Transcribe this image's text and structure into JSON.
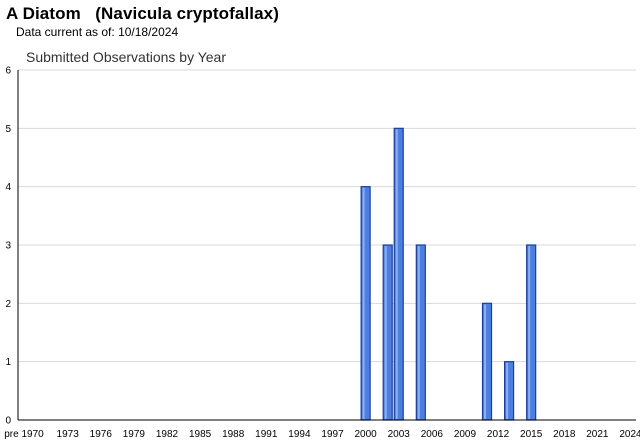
{
  "header": {
    "species": "A Diatom",
    "scientific_name": "(Navicula cryptofallax)",
    "data_current_label": "Data current as of:",
    "data_current_date": "10/18/2024"
  },
  "chart_data": {
    "type": "bar",
    "title": "Submitted Observations by Year",
    "xlabel": "",
    "ylabel": "",
    "ylim": [
      0,
      6
    ],
    "yticks": [
      0,
      1,
      2,
      3,
      4,
      5,
      6
    ],
    "grid": true,
    "legend": "none",
    "categories": [
      "pre 1970",
      "1970",
      "1971",
      "1972",
      "1973",
      "1974",
      "1975",
      "1976",
      "1977",
      "1978",
      "1979",
      "1980",
      "1981",
      "1982",
      "1983",
      "1984",
      "1985",
      "1986",
      "1987",
      "1988",
      "1989",
      "1990",
      "1991",
      "1992",
      "1993",
      "1994",
      "1995",
      "1996",
      "1997",
      "1998",
      "1999",
      "2000",
      "2001",
      "2002",
      "2003",
      "2004",
      "2005",
      "2006",
      "2007",
      "2008",
      "2009",
      "2010",
      "2011",
      "2012",
      "2013",
      "2014",
      "2015",
      "2016",
      "2017",
      "2018",
      "2019",
      "2020",
      "2021",
      "2022",
      "2023",
      "2024"
    ],
    "x_tick_labels": [
      "pre 1970",
      "1973",
      "1976",
      "1979",
      "1982",
      "1985",
      "1988",
      "1991",
      "1994",
      "1997",
      "2000",
      "2003",
      "2006",
      "2009",
      "2012",
      "2015",
      "2018",
      "2021",
      "2024"
    ],
    "values": [
      0,
      0,
      0,
      0,
      0,
      0,
      0,
      0,
      0,
      0,
      0,
      0,
      0,
      0,
      0,
      0,
      0,
      0,
      0,
      0,
      0,
      0,
      0,
      0,
      0,
      0,
      0,
      0,
      0,
      0,
      0,
      4,
      0,
      3,
      5,
      0,
      3,
      0,
      0,
      0,
      0,
      0,
      2,
      0,
      1,
      0,
      3,
      0,
      0,
      0,
      0,
      0,
      0,
      0,
      0,
      0
    ],
    "colors": {
      "bar_fill": "#4d7fe0",
      "bar_stroke": "#1b3f9c",
      "grid": "#d9d9d9",
      "axis": "#000000"
    }
  }
}
